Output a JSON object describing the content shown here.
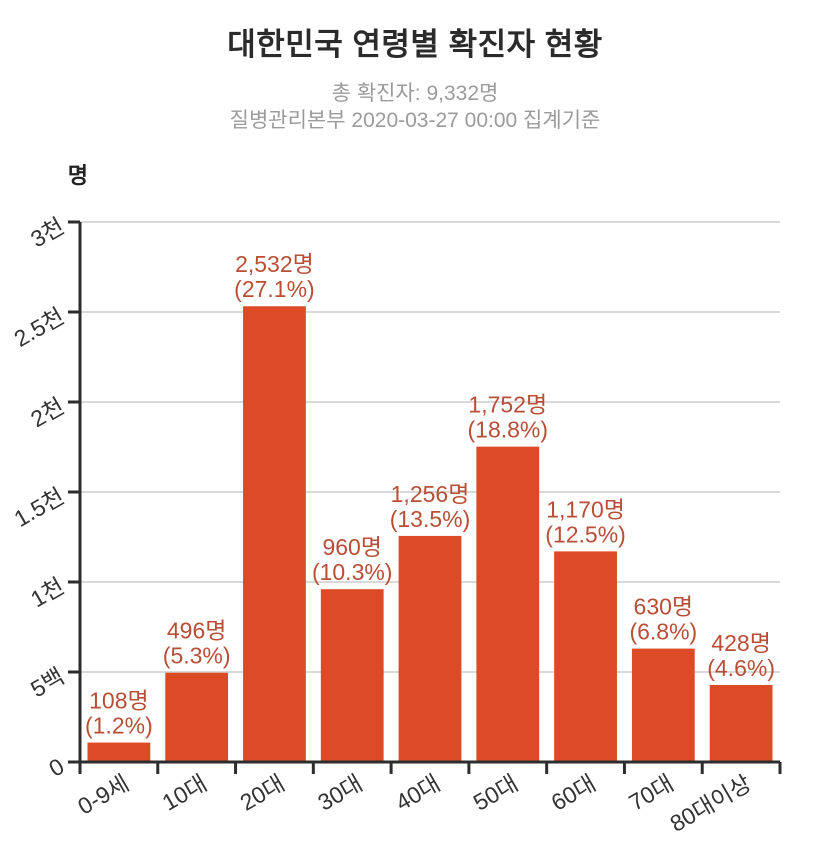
{
  "header": {
    "title": "대한민국 연령별 확진자 현황",
    "subtitle_total": "총 확진자: 9,332명",
    "subtitle_source": "질병관리본부 2020-03-27 00:00 집계기준"
  },
  "chart_data": {
    "type": "bar",
    "title": "대한민국 연령별 확진자 현황",
    "subtitle": "총 확진자: 9,332명 / 질병관리본부 2020-03-27 00:00 집계기준",
    "unit_label": "명",
    "xlabel": "",
    "ylabel": "명",
    "categories": [
      "0-9세",
      "10대",
      "20대",
      "30대",
      "40대",
      "50대",
      "60대",
      "70대",
      "80대이상"
    ],
    "values": [
      108,
      496,
      2532,
      960,
      1256,
      1752,
      1170,
      630,
      428
    ],
    "percentages": [
      1.2,
      5.3,
      27.1,
      10.3,
      13.5,
      18.8,
      12.5,
      6.8,
      4.6
    ],
    "bar_labels": [
      [
        "108명",
        "(1.2%)"
      ],
      [
        "496명",
        "(5.3%)"
      ],
      [
        "2,532명",
        "(27.1%)"
      ],
      [
        "960명",
        "(10.3%)"
      ],
      [
        "1,256명",
        "(13.5%)"
      ],
      [
        "1,752명",
        "(18.8%)"
      ],
      [
        "1,170명",
        "(12.5%)"
      ],
      [
        "630명",
        "(6.8%)"
      ],
      [
        "428명",
        "(4.6%)"
      ]
    ],
    "y_ticks": {
      "values": [
        0,
        500,
        1000,
        1500,
        2000,
        2500,
        3000
      ],
      "labels": [
        "0",
        "5백",
        "1천",
        "1.5천",
        "2천",
        "2.5천",
        "3천"
      ]
    },
    "ylim": [
      0,
      3000
    ],
    "grid": true,
    "legend_position": "none",
    "colors": {
      "bar": "#dc4a26",
      "value_label": "#b94e36",
      "axis": "#2d2d2d",
      "grid": "#d9d9d9",
      "tick_text": "#333333",
      "title": "#2b2b2b",
      "subtitle": "#9b9b9b"
    }
  }
}
